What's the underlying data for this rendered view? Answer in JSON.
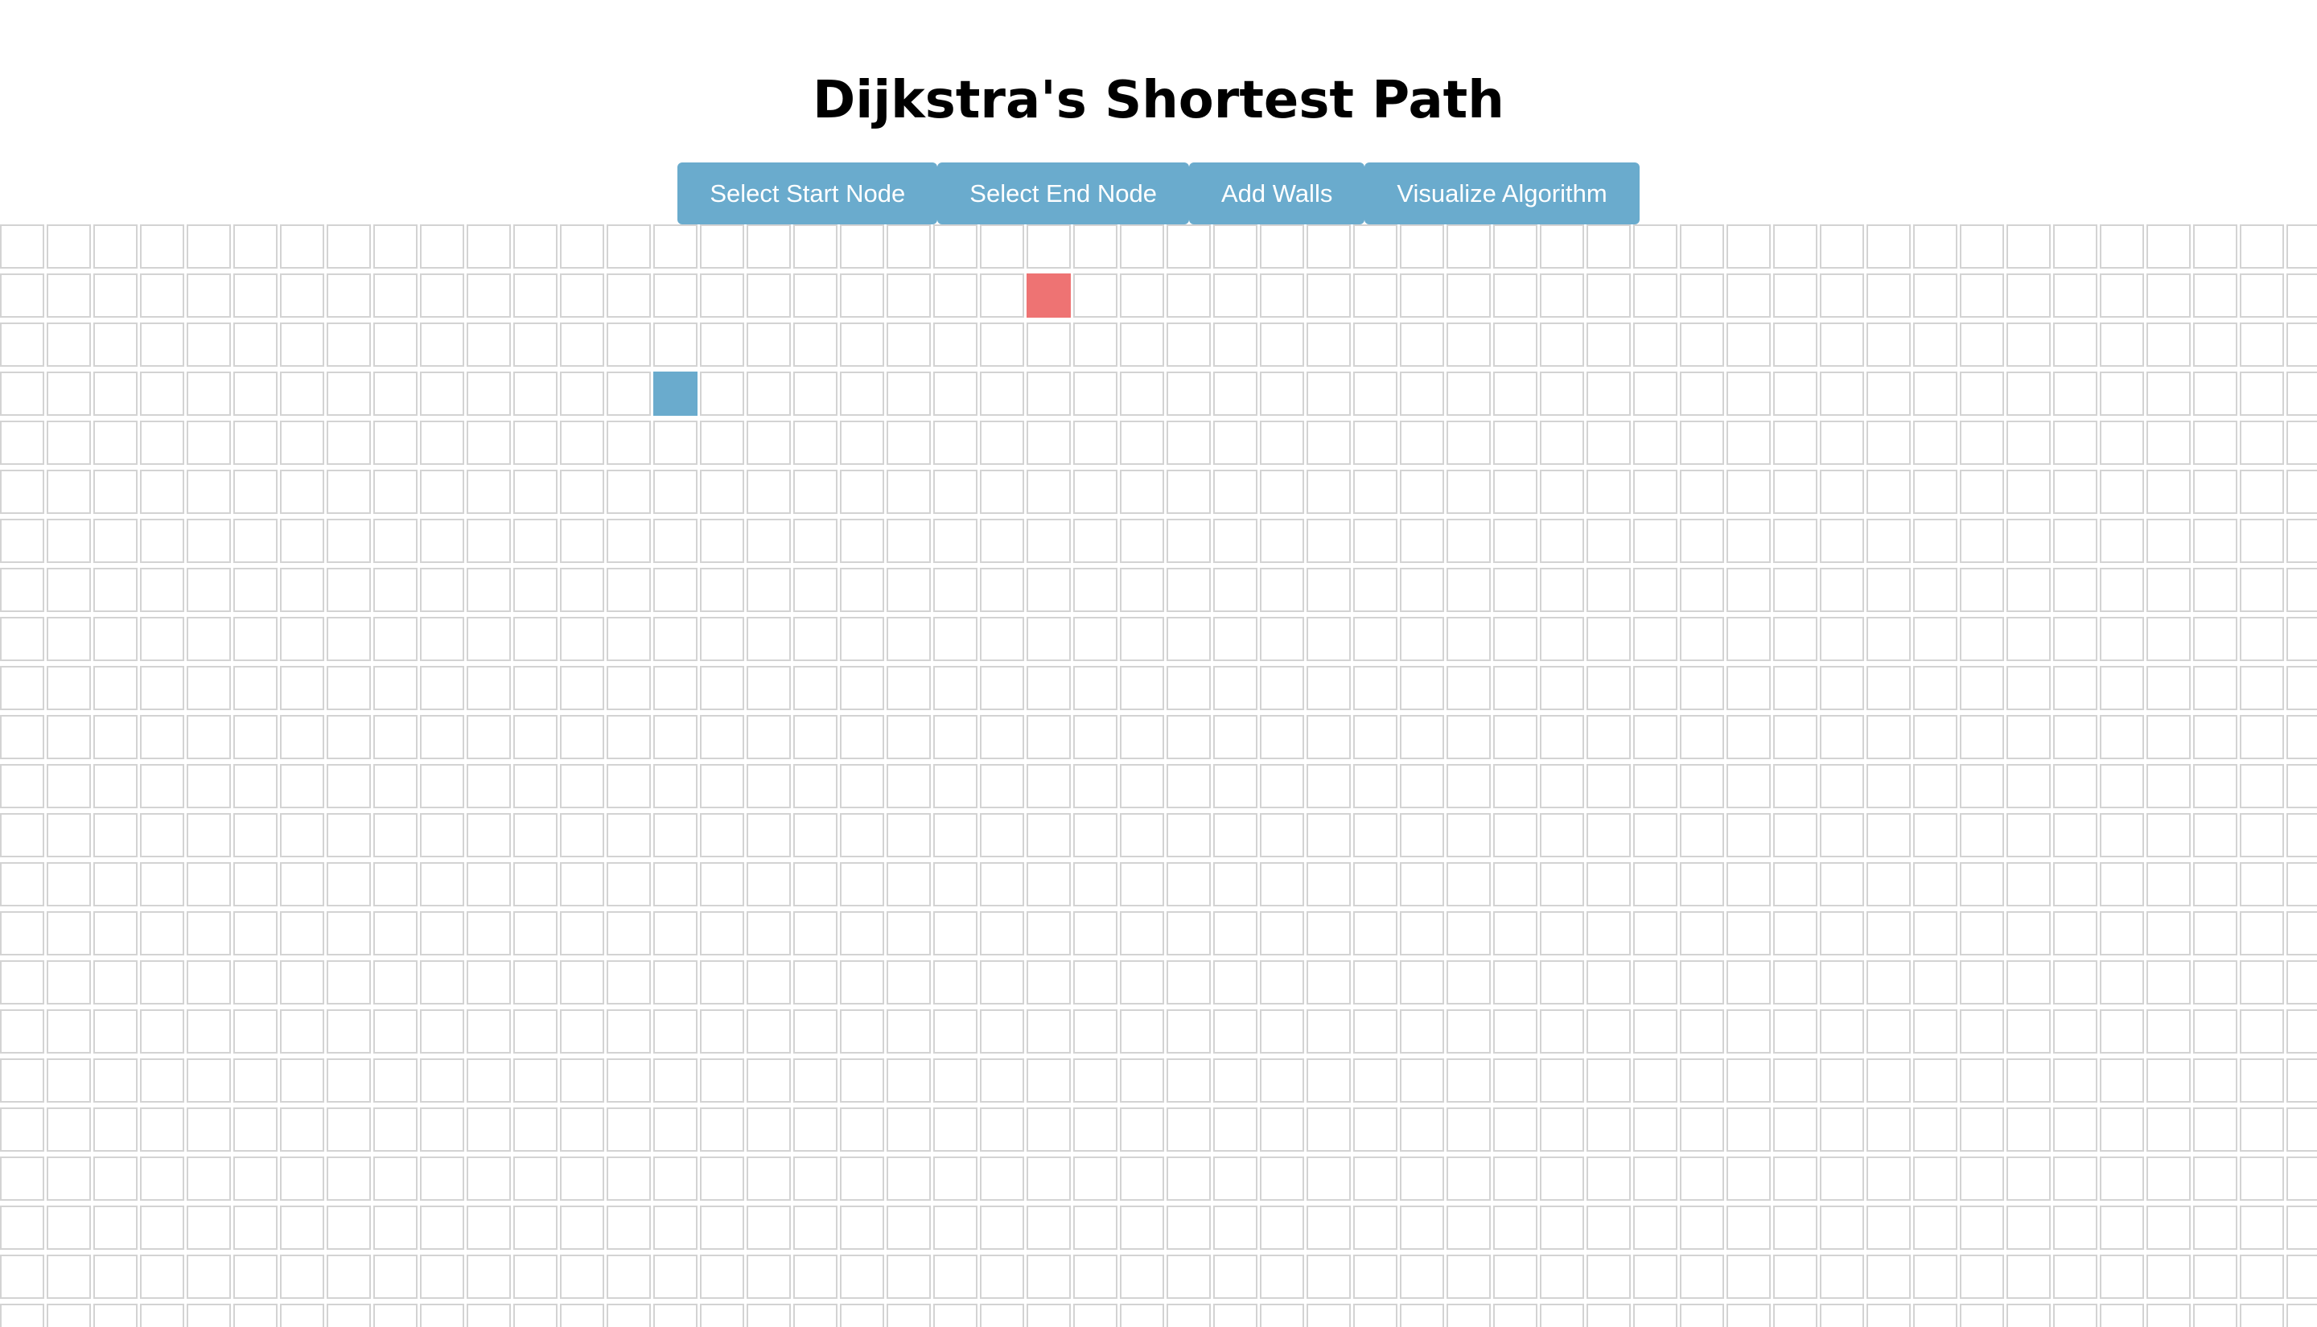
{
  "header": {
    "title": "Dijkstra's Shortest Path"
  },
  "toolbar": {
    "buttons": [
      {
        "name": "select-start-node-button",
        "label": "Select Start Node"
      },
      {
        "name": "select-end-node-button",
        "label": "Select End Node"
      },
      {
        "name": "add-walls-button",
        "label": "Add Walls"
      },
      {
        "name": "visualize-algorithm-button",
        "label": "Visualize Algorithm"
      }
    ]
  },
  "grid": {
    "columns": 50,
    "rows": 23,
    "start_node": {
      "row": 3,
      "col": 14
    },
    "end_node": {
      "row": 1,
      "col": 22
    }
  },
  "colors": {
    "button_bg": "#6aabcd",
    "start_node": "#6aabcd",
    "end_node": "#ee7373",
    "cell_border": "#d3d3d3"
  }
}
